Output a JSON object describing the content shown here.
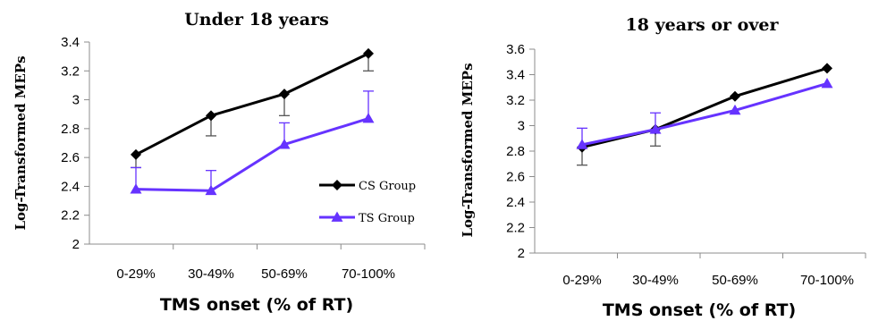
{
  "colors": {
    "cs": "#000000",
    "ts": "#6633ff",
    "axis": "#8c8c8c",
    "error_bar_cs": "#555555"
  },
  "chart_data": [
    {
      "type": "line",
      "title": "Under 18 years",
      "xlabel": "TMS onset (% of RT)",
      "ylabel": "Log-Transformed MEPs",
      "categories": [
        "0-29%",
        "30-49%",
        "50-69%",
        "70-100%"
      ],
      "ylim": [
        2,
        3.4
      ],
      "yticks": [
        "2",
        "2.2",
        "2.4",
        "2.6",
        "2.8",
        "3",
        "3.2",
        "3.4"
      ],
      "grid": false,
      "legend": "inside-right",
      "series": [
        {
          "name": "CS Group",
          "marker": "diamond",
          "values": [
            2.62,
            2.89,
            3.04,
            3.32
          ],
          "error": [
            0.09,
            0.14,
            0.15,
            0.12
          ]
        },
        {
          "name": "TS Group",
          "marker": "triangle",
          "values": [
            2.38,
            2.37,
            2.69,
            2.87
          ],
          "error": [
            0.15,
            0.14,
            0.15,
            0.19
          ]
        }
      ]
    },
    {
      "type": "line",
      "title": "18 years or over",
      "xlabel": "TMS onset (% of RT)",
      "ylabel": "Log-Transformed MEPs",
      "categories": [
        "0-29%",
        "30-49%",
        "50-69%",
        "70-100%"
      ],
      "ylim": [
        2,
        3.6
      ],
      "yticks": [
        "2",
        "2.2",
        "2.4",
        "2.6",
        "2.8",
        "3",
        "3.2",
        "3.4",
        "3.6"
      ],
      "grid": false,
      "legend": "none",
      "series": [
        {
          "name": "CS Group",
          "marker": "diamond",
          "values": [
            2.83,
            2.97,
            3.23,
            3.45
          ],
          "error": [
            0.14,
            0.13,
            0.0,
            0.0
          ]
        },
        {
          "name": "TS Group",
          "marker": "triangle",
          "values": [
            2.85,
            2.97,
            3.12,
            3.33
          ],
          "error": [
            0.13,
            0.13,
            0.0,
            0.0
          ]
        }
      ]
    }
  ]
}
